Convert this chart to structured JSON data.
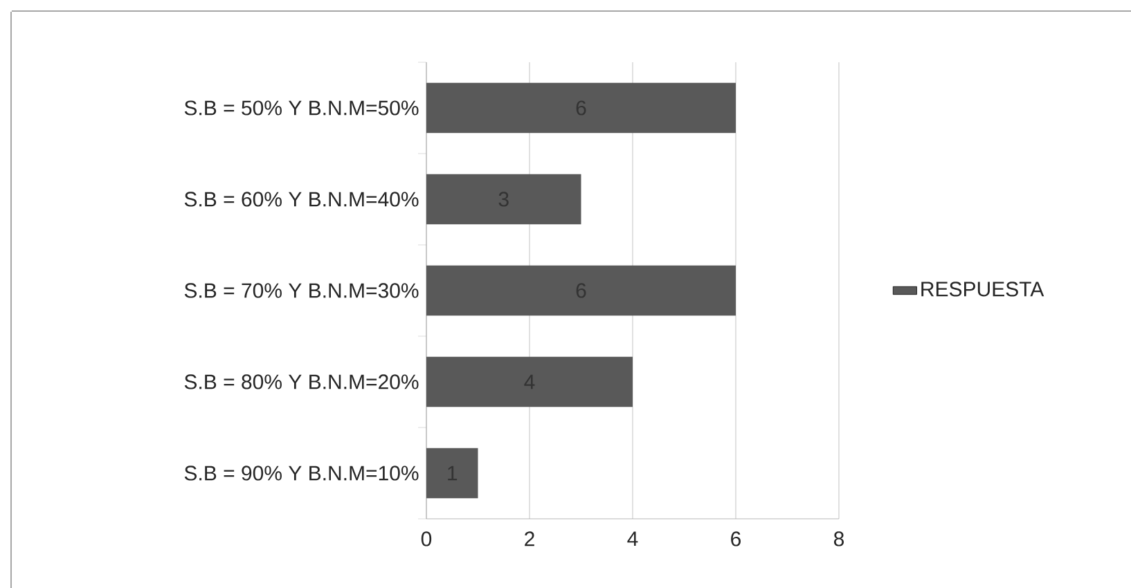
{
  "chart_data": {
    "type": "bar",
    "orientation": "horizontal",
    "categories": [
      "S.B = 50% Y B.N.M=50%",
      "S.B = 60% Y B.N.M=40%",
      "S.B = 70% Y B.N.M=30%",
      "S.B = 80% Y B.N.M=20%",
      "S.B = 90% Y B.N.M=10%"
    ],
    "series": [
      {
        "name": "RESPUESTA",
        "color": "#595959",
        "values": [
          6,
          3,
          6,
          4,
          1
        ]
      }
    ],
    "xlim": [
      0,
      8
    ],
    "xticks": [
      0,
      2,
      4,
      6,
      8
    ],
    "grid": "x",
    "legend": "right",
    "data_labels": true
  }
}
